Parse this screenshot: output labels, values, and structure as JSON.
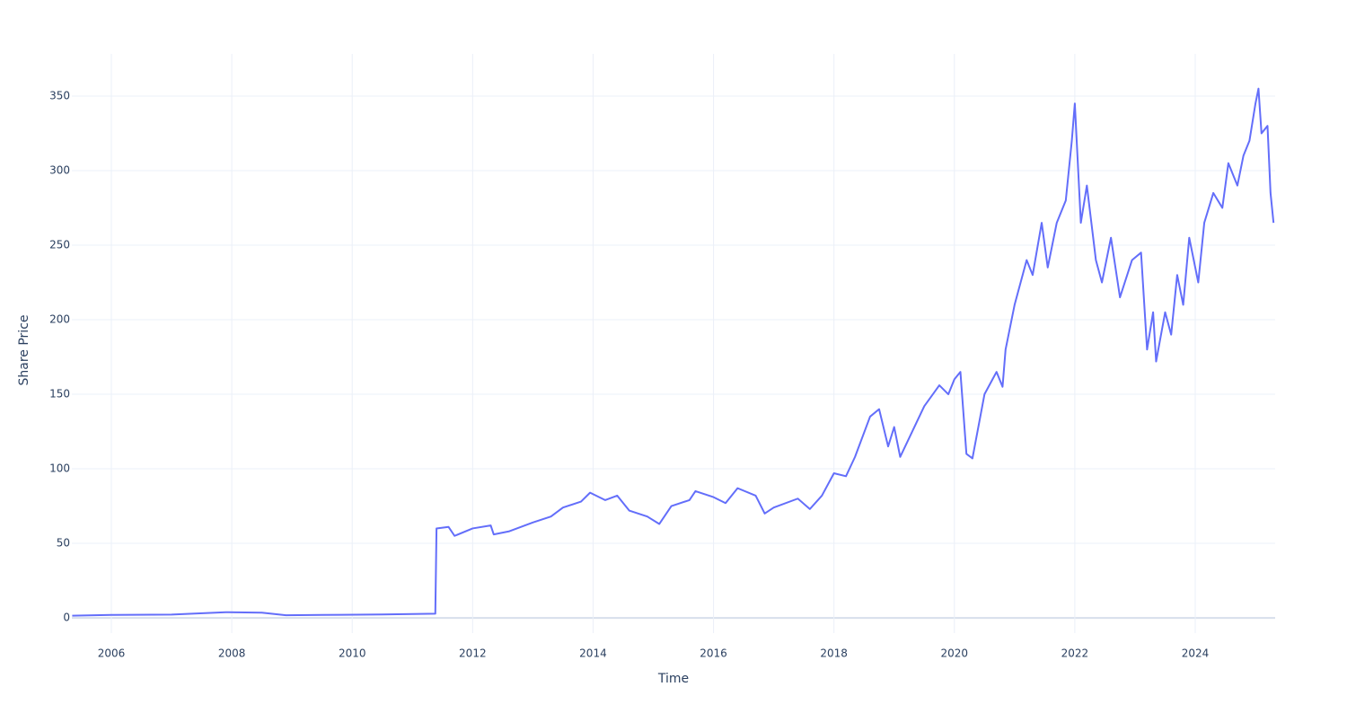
{
  "chart_data": {
    "type": "line",
    "x_label": "Time",
    "y_label": "Share Price",
    "x": [
      2005.35,
      2006,
      2007,
      2007.9,
      2008.5,
      2008.9,
      2009.5,
      2010.5,
      2011.38,
      2011.4,
      2011.6,
      2011.7,
      2012.0,
      2012.3,
      2012.35,
      2012.6,
      2013.0,
      2013.3,
      2013.5,
      2013.8,
      2013.95,
      2014.2,
      2014.4,
      2014.6,
      2014.9,
      2015.1,
      2015.3,
      2015.6,
      2015.7,
      2016.0,
      2016.2,
      2016.4,
      2016.7,
      2016.85,
      2017.0,
      2017.4,
      2017.6,
      2017.8,
      2018.0,
      2018.2,
      2018.35,
      2018.6,
      2018.75,
      2018.9,
      2019.0,
      2019.1,
      2019.3,
      2019.5,
      2019.75,
      2019.9,
      2020.0,
      2020.1,
      2020.2,
      2020.3,
      2020.5,
      2020.7,
      2020.8,
      2020.85,
      2021.0,
      2021.2,
      2021.3,
      2021.45,
      2021.55,
      2021.7,
      2021.85,
      2021.95,
      2022.0,
      2022.1,
      2022.2,
      2022.35,
      2022.45,
      2022.6,
      2022.75,
      2022.95,
      2023.1,
      2023.2,
      2023.3,
      2023.35,
      2023.5,
      2023.6,
      2023.7,
      2023.8,
      2023.9,
      2024.05,
      2024.15,
      2024.3,
      2024.45,
      2024.55,
      2024.7,
      2024.8,
      2024.9,
      2025.0,
      2025.05,
      2025.1,
      2025.2,
      2025.25,
      2025.3
    ],
    "values": [
      1.5,
      2,
      2.2,
      3.8,
      3.5,
      1.8,
      2,
      2.3,
      2.8,
      60,
      61,
      55,
      60,
      62,
      56,
      58,
      64,
      68,
      74,
      78,
      84,
      79,
      82,
      72,
      68,
      63,
      75,
      79,
      85,
      81,
      77,
      87,
      82,
      70,
      74,
      80,
      73,
      82,
      97,
      95,
      108,
      135,
      140,
      115,
      128,
      108,
      125,
      142,
      156,
      150,
      160,
      165,
      110,
      107,
      150,
      165,
      155,
      180,
      210,
      240,
      230,
      265,
      235,
      265,
      280,
      320,
      345,
      265,
      290,
      240,
      225,
      255,
      215,
      240,
      245,
      180,
      205,
      172,
      205,
      190,
      230,
      210,
      255,
      225,
      265,
      285,
      275,
      305,
      290,
      310,
      320,
      345,
      355,
      325,
      330,
      285,
      265
    ],
    "color": "#636efa",
    "xlim": [
      2005.344,
      2025.327
    ],
    "xticks": [
      2006,
      2008,
      2010,
      2012,
      2014,
      2016,
      2018,
      2020,
      2022,
      2024
    ],
    "ylim": [
      -10.2,
      378.3
    ],
    "yticks": [
      0,
      50,
      100,
      150,
      200,
      250,
      300,
      350
    ],
    "grid": true
  }
}
